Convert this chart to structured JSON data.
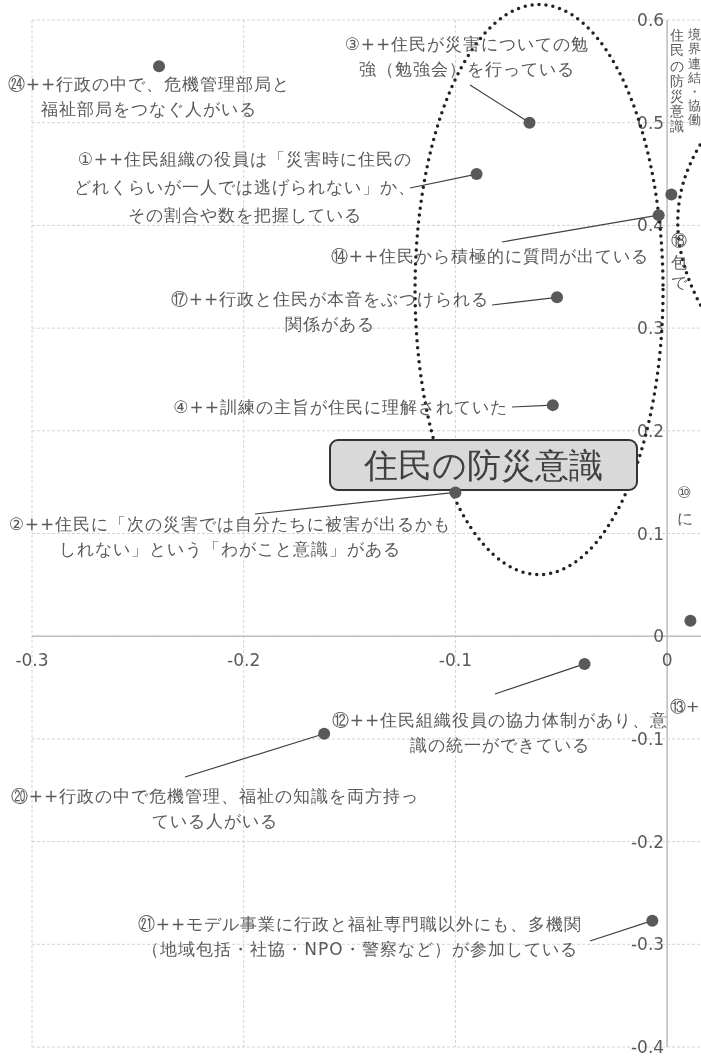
{
  "chart_data": {
    "type": "scatter",
    "xlim": [
      -0.3,
      0.016
    ],
    "ylim": [
      -0.4,
      0.6
    ],
    "xticks": [
      -0.3,
      -0.2,
      -0.1,
      0
    ],
    "yticks": [
      -0.4,
      -0.3,
      -0.2,
      -0.1,
      0,
      0.1,
      0.2,
      0.3,
      0.4,
      0.5,
      0.6
    ],
    "grid": true,
    "marker": "circle",
    "series": [
      {
        "color": "#595959",
        "x": [
          -0.24,
          -0.065,
          -0.09,
          0.002,
          -0.004,
          -0.052,
          -0.054,
          -0.1,
          0.011,
          -0.039,
          -0.162,
          -0.007
        ],
        "values": [
          0.555,
          0.5,
          0.45,
          0.43,
          0.41,
          0.33,
          0.225,
          0.14,
          0.015,
          -0.027,
          -0.095,
          -0.277
        ]
      }
    ],
    "annotations": [
      {
        "text": "㉔++行政の中で、危機管理部局と福祉部局をつなぐ人がいる",
        "x": -0.24,
        "y": 0.555
      },
      {
        "text": "③++住民が災害についての勉強（勉強会）を行っている",
        "x": -0.065,
        "y": 0.5
      },
      {
        "text": "①++住民組織の役員は「災害時に住民のどれくらいが一人では逃げられない」か、その割合や数を把握している",
        "x": -0.09,
        "y": 0.45
      },
      {
        "text": "⑭++住民から積極的に質問が出ている",
        "x": -0.004,
        "y": 0.41
      },
      {
        "text": "⑰++行政と住民が本音をぶつけられる関係がある",
        "x": -0.052,
        "y": 0.33
      },
      {
        "text": "④++訓練の主旨が住民に理解されていた",
        "x": -0.054,
        "y": 0.225
      },
      {
        "text": "②++住民に「次の災害では自分たちに被害が出るかもしれない」という「わがこと意識」がある",
        "x": -0.1,
        "y": 0.14
      },
      {
        "text": "⑫++住民組織役員の協力体制があり、意識の統一ができている",
        "x": -0.039,
        "y": -0.027
      },
      {
        "text": "⑳++行政の中で危機管理、福祉の知識を両方持っている人がいる",
        "x": -0.162,
        "y": -0.095
      },
      {
        "text": "㉑++モデル事業に行政と福祉専門職以外にも、多機関（地域包括・社協・NPO・警察など）が参加している",
        "x": -0.007,
        "y": -0.277
      },
      "住民の防災意識",
      "住民の防災意識",
      "境界連結・協働",
      "⑱",
      "包",
      "で",
      "⑩",
      "に",
      "⑬+"
    ]
  }
}
